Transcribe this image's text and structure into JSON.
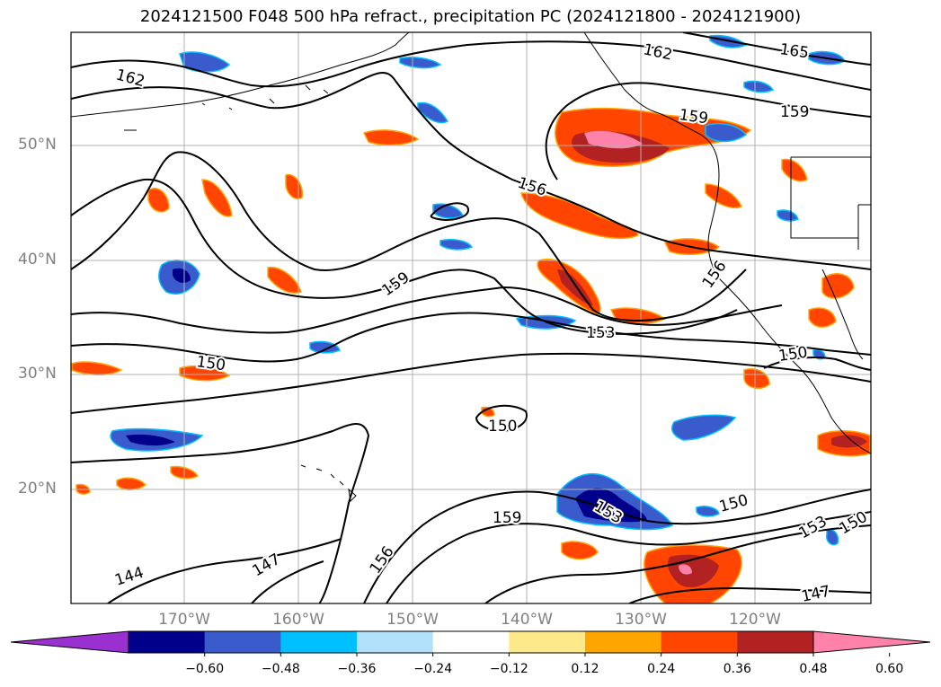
{
  "title": "2024121500 F048 500 hPa refract., precipitation PC (2024121800 - 2024121900)",
  "lat_labels": [
    "50°N",
    "40°N",
    "30°N",
    "20°N"
  ],
  "lon_labels": [
    "170°W",
    "160°W",
    "150°W",
    "140°W",
    "130°W",
    "120°W"
  ],
  "contour_labels": [
    "162",
    "165",
    "162",
    "159",
    "159",
    "156",
    "159",
    "156",
    "153",
    "150",
    "150",
    "150",
    "159",
    "153",
    "150",
    "153",
    "150",
    "144",
    "147",
    "156",
    "147"
  ],
  "colorbar": {
    "ticks": [
      "−0.60",
      "−0.48",
      "−0.36",
      "−0.24",
      "−0.12",
      "0.12",
      "0.24",
      "0.36",
      "0.48",
      "0.60"
    ],
    "colors": [
      "#9b30d0",
      "#00008b",
      "#3a5bcc",
      "#00bfff",
      "#b0e0fa",
      "#ffffff",
      "#fde98a",
      "#ffa500",
      "#ff4500",
      "#b22222",
      "#ff82ab"
    ]
  },
  "colors": {
    "coast": "#000000",
    "grid": "#b0b0b0",
    "contour": "#000000"
  }
}
